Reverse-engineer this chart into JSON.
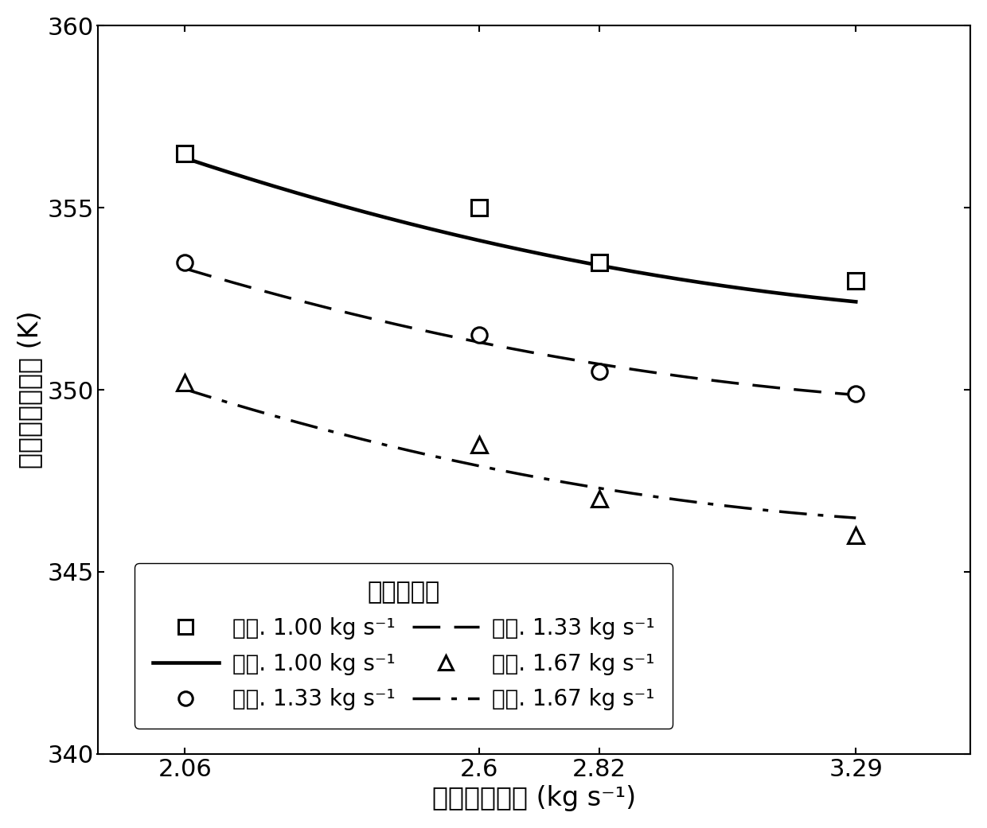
{
  "x_data": [
    2.06,
    2.6,
    2.82,
    3.29
  ],
  "exp_1_00": [
    356.5,
    355.0,
    353.5,
    353.0
  ],
  "exp_1_33": [
    353.5,
    351.5,
    350.5,
    349.9
  ],
  "exp_1_67": [
    350.2,
    348.5,
    347.0,
    346.0
  ],
  "model_1_00": [
    356.3,
    354.5,
    353.0,
    352.5
  ],
  "model_1_33": [
    353.3,
    351.5,
    350.5,
    349.9
  ],
  "model_1_67": [
    350.0,
    348.0,
    347.2,
    346.5
  ],
  "xlabel": "空气质量流量 (kg s⁻¹)",
  "ylabel": "冷却液出口温度 (K)",
  "legend_title": "冷却液流量",
  "legend_exp_1_00": "实验. 1.00 kg s⁻¹",
  "legend_exp_1_33": "实验. 1.33 kg s⁻¹",
  "legend_exp_1_67": "实验. 1.67 kg s⁻¹",
  "legend_model_1_00": "模型. 1.00 kg s⁻¹",
  "legend_model_1_33": "模型. 1.33 kg s⁻¹",
  "legend_model_1_67": "模型. 1.67 kg s⁻¹",
  "ylim": [
    340,
    360
  ],
  "xlim": [
    1.9,
    3.5
  ],
  "xticks": [
    2.06,
    2.6,
    2.82,
    3.29
  ],
  "yticks": [
    340,
    345,
    350,
    355,
    360
  ],
  "line_color": "#000000",
  "marker_size": 14,
  "line_width": 2.5
}
